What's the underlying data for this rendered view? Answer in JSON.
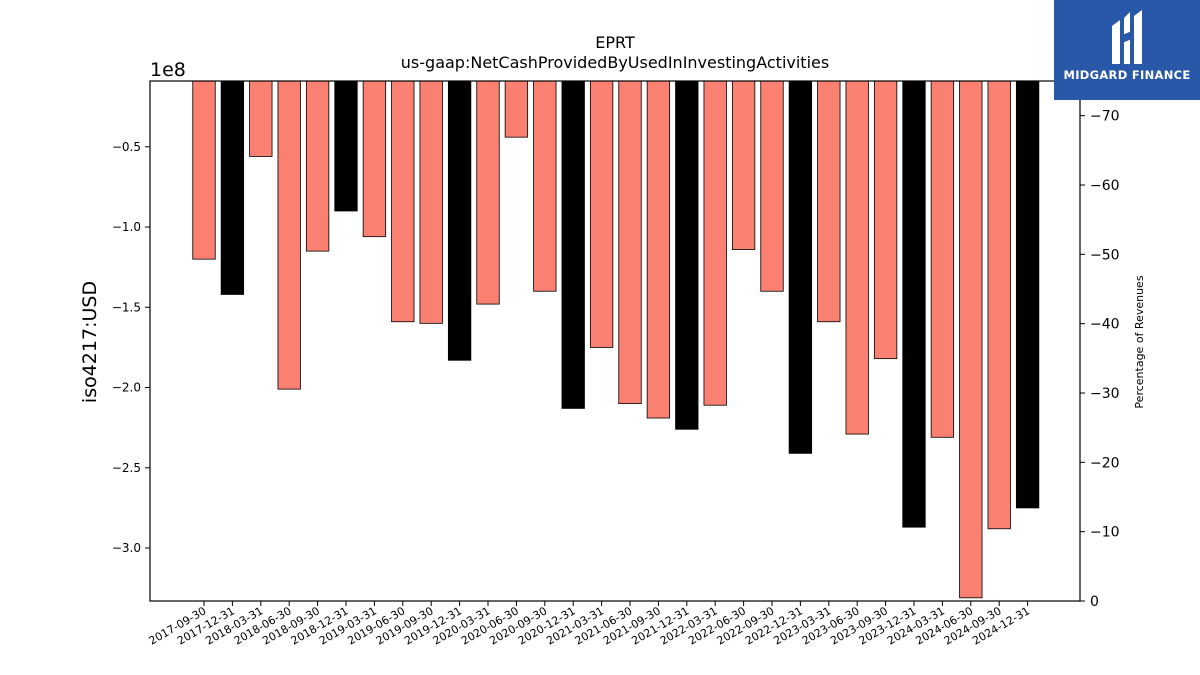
{
  "brand": {
    "name": "MIDGARD FINANCE",
    "color": "#2a58a8"
  },
  "chart_data": {
    "type": "bar",
    "title": "EPRT",
    "subtitle": "us-gaap:NetCashProvidedByUsedInInvestingActivities",
    "ylabel": "iso4217:USD",
    "y_multiplier_label": "1e8",
    "y2label": "Percentage of Revenues",
    "ylim": [
      -3.33,
      -0.09
    ],
    "yticks": [
      -0.5,
      -1.0,
      -1.5,
      -2.0,
      -2.5,
      -3.0
    ],
    "ytick_labels": [
      "−0.5",
      "−1.0",
      "−1.5",
      "−2.0",
      "−2.5",
      "−3.0"
    ],
    "y2lim": [
      0,
      75
    ],
    "y2ticks": [
      0,
      10,
      20,
      30,
      40,
      50,
      60,
      70
    ],
    "y2tick_labels": [
      "0",
      "−10",
      "−20",
      "−30",
      "−40",
      "−50",
      "−60",
      "−70"
    ],
    "categories": [
      "2017-09-30",
      "2017-12-31",
      "2018-03-31",
      "2018-06-30",
      "2018-09-30",
      "2018-12-31",
      "2019-03-31",
      "2019-06-30",
      "2019-09-30",
      "2019-12-31",
      "2020-03-31",
      "2020-06-30",
      "2020-09-30",
      "2020-12-31",
      "2021-03-31",
      "2021-06-30",
      "2021-09-30",
      "2021-12-31",
      "2022-03-31",
      "2022-06-30",
      "2022-09-30",
      "2022-12-31",
      "2023-03-31",
      "2023-06-30",
      "2023-09-30",
      "2023-12-31",
      "2024-03-31",
      "2024-06-30",
      "2024-09-30",
      "2024-12-31"
    ],
    "values": [
      -1.2,
      -1.42,
      -0.56,
      -2.01,
      -1.15,
      -0.9,
      -1.06,
      -1.59,
      -1.6,
      -1.83,
      -1.48,
      -0.44,
      -1.4,
      -2.13,
      -1.75,
      -2.1,
      -2.19,
      -2.26,
      -2.11,
      -1.14,
      -1.4,
      -2.41,
      -1.59,
      -2.29,
      -1.82,
      -2.87,
      -2.31,
      -3.31,
      -2.88,
      -2.75
    ],
    "bar_fill": [
      "#fa8072",
      "#000000",
      "#fa8072",
      "#fa8072",
      "#fa8072",
      "#000000",
      "#fa8072",
      "#fa8072",
      "#fa8072",
      "#000000",
      "#fa8072",
      "#fa8072",
      "#fa8072",
      "#000000",
      "#fa8072",
      "#fa8072",
      "#fa8072",
      "#000000",
      "#fa8072",
      "#fa8072",
      "#fa8072",
      "#000000",
      "#fa8072",
      "#fa8072",
      "#fa8072",
      "#000000",
      "#fa8072",
      "#fa8072",
      "#fa8072",
      "#000000"
    ],
    "grid": false
  }
}
